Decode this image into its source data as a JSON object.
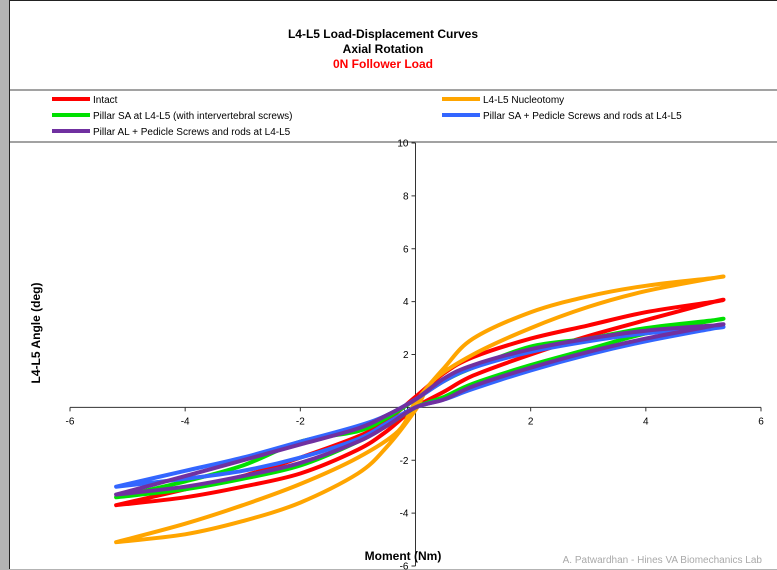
{
  "chart_data": {
    "type": "line",
    "title": "L4-L5 Load-Displacement Curves",
    "subtitle": "Axial Rotation",
    "subtitle2": "0N Follower Load",
    "xlabel": "Moment (Nm)",
    "ylabel": "L4-L5 Angle (deg)",
    "xlim": [
      -6,
      6
    ],
    "ylim": [
      -6,
      10
    ],
    "xticks": [
      -6,
      -4,
      -2,
      0,
      2,
      4,
      6
    ],
    "yticks": [
      -6,
      -4,
      -2,
      0,
      2,
      4,
      6,
      8,
      10
    ],
    "legend_position": "top",
    "grid": false,
    "credit": "A. Patwardhan - Hines VA Biomechanics Lab",
    "colors": {
      "title": "#000000",
      "subtitle2": "#ff0000",
      "credit": "#a9a9a9"
    },
    "series": [
      {
        "name": "Intact",
        "color": "#ff0000",
        "loading": {
          "x": [
            -5.2,
            -4,
            -3,
            -2,
            -1,
            -0.5,
            0,
            0.5,
            1,
            2,
            3,
            4,
            5.2
          ],
          "y": [
            -3.7,
            -3.4,
            -3.0,
            -2.5,
            -1.6,
            -0.9,
            0.0,
            0.6,
            1.2,
            2.0,
            2.7,
            3.3,
            4.0
          ]
        },
        "unloading": {
          "x": [
            5.2,
            4,
            3,
            2,
            1,
            0.5,
            0,
            -0.5,
            -1,
            -2,
            -3,
            -4,
            -5.2
          ],
          "y": [
            4.0,
            3.6,
            3.1,
            2.6,
            1.9,
            1.3,
            0.4,
            -0.5,
            -1.1,
            -1.9,
            -2.6,
            -3.1,
            -3.7
          ]
        }
      },
      {
        "name": "L4-L5 Nucleotomy",
        "color": "#ffa500",
        "loading": {
          "x": [
            -5.2,
            -4,
            -3,
            -2,
            -1,
            -0.5,
            0,
            0.3,
            1,
            2,
            3,
            4,
            5.2
          ],
          "y": [
            -5.1,
            -4.8,
            -4.3,
            -3.6,
            -2.5,
            -1.5,
            -0.1,
            1.0,
            2.0,
            3.0,
            3.8,
            4.4,
            4.9
          ]
        },
        "unloading": {
          "x": [
            5.2,
            4,
            3,
            2,
            1,
            0.5,
            0,
            -0.3,
            -1,
            -2,
            -3,
            -4,
            -5.2
          ],
          "y": [
            4.9,
            4.6,
            4.2,
            3.6,
            2.6,
            1.5,
            0.2,
            -0.9,
            -1.9,
            -2.9,
            -3.7,
            -4.4,
            -5.1
          ]
        }
      },
      {
        "name": "Pillar SA at L4-L5 (with intervertebral screws)",
        "color": "#00e000",
        "loading": {
          "x": [
            -5.2,
            -4,
            -3,
            -2,
            -1,
            -0.5,
            0,
            0.5,
            1,
            2,
            3,
            4,
            5.2
          ],
          "y": [
            -3.4,
            -3.1,
            -2.7,
            -2.2,
            -1.3,
            -0.7,
            0.0,
            0.4,
            0.9,
            1.6,
            2.2,
            2.8,
            3.3
          ]
        },
        "unloading": {
          "x": [
            5.2,
            4,
            3,
            2,
            1,
            0.5,
            0,
            -0.5,
            -1,
            -2,
            -3,
            -4,
            -5.2
          ],
          "y": [
            3.3,
            3.0,
            2.6,
            2.3,
            1.5,
            1.0,
            0.3,
            -0.4,
            -0.9,
            -1.3,
            -2.2,
            -2.8,
            -3.4
          ]
        }
      },
      {
        "name": "Pillar SA + Pedicle Screws and rods at L4-L5",
        "color": "#3366ff",
        "loading": {
          "x": [
            -5.2,
            -4,
            -3,
            -2,
            -1,
            -0.5,
            0,
            0.5,
            1,
            2,
            3,
            4,
            5.2
          ],
          "y": [
            -3.0,
            -2.7,
            -2.4,
            -1.9,
            -1.2,
            -0.6,
            0.0,
            0.3,
            0.7,
            1.4,
            2.0,
            2.5,
            3.0
          ]
        },
        "unloading": {
          "x": [
            5.2,
            4,
            3,
            2,
            1,
            0.5,
            0,
            -0.5,
            -1,
            -2,
            -3,
            -4,
            -5.2
          ],
          "y": [
            3.0,
            2.8,
            2.5,
            2.1,
            1.5,
            1.0,
            0.3,
            -0.3,
            -0.7,
            -1.3,
            -1.9,
            -2.4,
            -3.0
          ]
        }
      },
      {
        "name": "Pillar AL + Pedicle Screws and rods at L4-L5",
        "color": "#7030a0",
        "loading": {
          "x": [
            -5.2,
            -4,
            -3,
            -2,
            -1,
            -0.5,
            0,
            0.5,
            1,
            2,
            3,
            4,
            5.2
          ],
          "y": [
            -3.3,
            -3.0,
            -2.6,
            -2.1,
            -1.3,
            -0.7,
            0.0,
            0.3,
            0.8,
            1.5,
            2.1,
            2.6,
            3.1
          ]
        },
        "unloading": {
          "x": [
            5.2,
            4,
            3,
            2,
            1,
            0.5,
            0,
            -0.5,
            -1,
            -2,
            -3,
            -4,
            -5.2
          ],
          "y": [
            3.1,
            2.9,
            2.6,
            2.2,
            1.6,
            1.1,
            0.3,
            -0.3,
            -0.8,
            -1.4,
            -2.0,
            -2.6,
            -3.3
          ]
        }
      }
    ]
  }
}
